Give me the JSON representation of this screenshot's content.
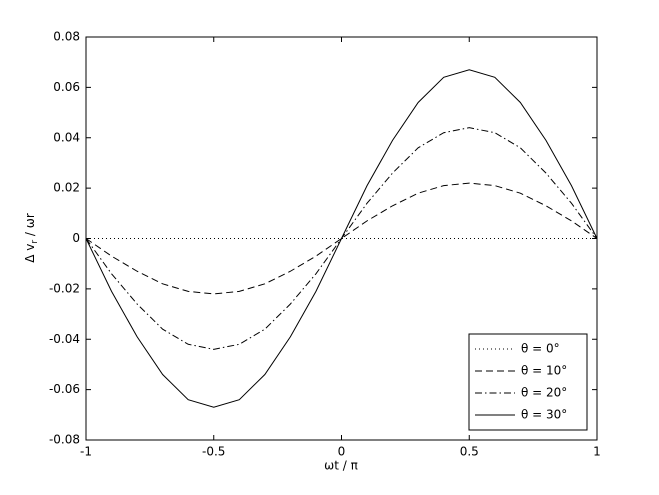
{
  "chart_data": {
    "type": "line",
    "xlabel": "ωt / π",
    "ylabel": {
      "main": "Δ v",
      "sub": "r",
      "rest": " / ωr"
    },
    "x": [
      -1,
      -0.9,
      -0.8,
      -0.7,
      -0.6,
      -0.5,
      -0.4,
      -0.3,
      -0.2,
      -0.1,
      0,
      0.1,
      0.2,
      0.3,
      0.4,
      0.5,
      0.6,
      0.7,
      0.8,
      0.9,
      1
    ],
    "series": [
      {
        "name": "θ = 0°",
        "color": "#000000",
        "style": "dotted",
        "values": [
          0,
          0,
          0,
          0,
          0,
          0,
          0,
          0,
          0,
          0,
          0,
          0,
          0,
          0,
          0,
          0,
          0,
          0,
          0,
          0,
          0
        ]
      },
      {
        "name": "θ = 10°",
        "color": "#000000",
        "style": "dashed",
        "values": [
          0,
          -0.007,
          -0.013,
          -0.018,
          -0.021,
          -0.022,
          -0.021,
          -0.018,
          -0.013,
          -0.007,
          0,
          0.007,
          0.013,
          0.018,
          0.021,
          0.022,
          0.021,
          0.018,
          0.013,
          0.007,
          0
        ]
      },
      {
        "name": "θ = 20°",
        "color": "#000000",
        "style": "dashdot",
        "values": [
          0,
          -0.014,
          -0.026,
          -0.036,
          -0.042,
          -0.044,
          -0.042,
          -0.036,
          -0.026,
          -0.014,
          0,
          0.014,
          0.026,
          0.036,
          0.042,
          0.044,
          0.042,
          0.036,
          0.026,
          0.014,
          0
        ]
      },
      {
        "name": "θ = 30°",
        "color": "#000000",
        "style": "solid",
        "values": [
          0,
          -0.021,
          -0.039,
          -0.054,
          -0.064,
          -0.067,
          -0.064,
          -0.054,
          -0.039,
          -0.021,
          0,
          0.021,
          0.039,
          0.054,
          0.064,
          0.067,
          0.064,
          0.054,
          0.039,
          0.021,
          0
        ]
      }
    ],
    "xlim": [
      -1,
      1
    ],
    "xticks": [
      -1,
      -0.5,
      0,
      0.5,
      1
    ],
    "ylim": [
      -0.08,
      0.08
    ],
    "yticks": [
      -0.08,
      -0.06,
      -0.04,
      -0.02,
      0,
      0.02,
      0.04,
      0.06,
      0.08
    ],
    "grid": false,
    "legend": "lower right"
  }
}
